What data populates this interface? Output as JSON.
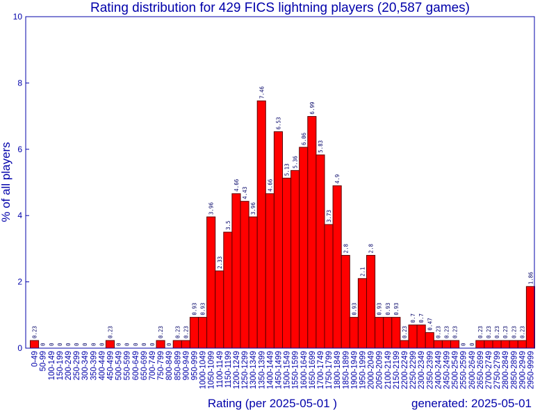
{
  "chart_data": {
    "type": "bar",
    "title": "Rating distribution for 429 FICS lightning players (20,587 games)",
    "xlabel": "Rating (per 2025-05-01 )",
    "ylabel": "% of all players",
    "footer": "generated: 2025-05-01",
    "ylim": [
      0,
      10
    ],
    "yticks": [
      "0",
      "2",
      "4",
      "6",
      "8",
      "10"
    ],
    "categories": [
      "0-49",
      "50-99",
      "100-149",
      "150-199",
      "200-249",
      "250-299",
      "300-349",
      "350-399",
      "400-449",
      "450-499",
      "500-549",
      "550-599",
      "600-649",
      "650-699",
      "700-749",
      "750-799",
      "800-849",
      "850-899",
      "900-949",
      "950-999",
      "1000-1049",
      "1050-1099",
      "1100-1149",
      "1150-1199",
      "1200-1249",
      "1250-1299",
      "1300-1349",
      "1350-1399",
      "1400-1449",
      "1450-1499",
      "1500-1549",
      "1550-1599",
      "1600-1649",
      "1650-1699",
      "1700-1749",
      "1750-1799",
      "1800-1849",
      "1850-1899",
      "1900-1949",
      "1950-1999",
      "2000-2049",
      "2050-2099",
      "2100-2149",
      "2150-2199",
      "2200-2249",
      "2250-2299",
      "2300-2349",
      "2350-2399",
      "2400-2449",
      "2450-2499",
      "2500-2549",
      "2550-2599",
      "2600-2649",
      "2650-2699",
      "2700-2749",
      "2750-2799",
      "2800-2849",
      "2850-2899",
      "2900-2949",
      "2950-9999"
    ],
    "values": [
      0.23,
      0,
      0,
      0,
      0,
      0,
      0,
      0,
      0,
      0.23,
      0,
      0,
      0,
      0,
      0,
      0.23,
      0,
      0.23,
      0.23,
      0.93,
      0.93,
      3.96,
      2.33,
      3.5,
      4.66,
      4.43,
      3.96,
      7.46,
      4.66,
      6.53,
      5.13,
      5.36,
      6.06,
      6.99,
      5.83,
      3.73,
      4.9,
      2.8,
      0.93,
      2.1,
      2.8,
      0.93,
      0.93,
      0.93,
      0.23,
      0.7,
      0.7,
      0.47,
      0.23,
      0.23,
      0.23,
      0,
      0,
      0.23,
      0.23,
      0.23,
      0.23,
      0.23,
      0.23,
      1.86
    ],
    "labels": [
      "0.23",
      "0",
      "0",
      "0",
      "0",
      "0",
      "0",
      "0",
      "0",
      "0.23",
      "0",
      "0",
      "0",
      "0",
      "0",
      "0.23",
      "0",
      "0.23",
      "0.23",
      "0.93",
      "0.93",
      "3.96",
      "2.33",
      "3.5",
      "4.66",
      "4.43",
      "3.96",
      "7.46",
      "4.66",
      "6.53",
      "5.13",
      "5.36",
      "6.06",
      "6.99",
      "5.83",
      "3.73",
      "4.9",
      "2.8",
      "0.93",
      "2.1",
      "2.8",
      "0.93",
      "0.93",
      "0.93",
      "0.23",
      "0.7",
      "0.7",
      "0.47",
      "0.23",
      "0.23",
      "0.23",
      "0",
      "0",
      "0.23",
      "0.23",
      "0.23",
      "0.23",
      "0.23",
      "0.23",
      "1.86"
    ],
    "grid": false,
    "colors": {
      "bar": "#ff0000",
      "bar_edge": "#5a0000",
      "text": "#0000aa",
      "label": "#000066",
      "axis": "#0000aa"
    }
  }
}
